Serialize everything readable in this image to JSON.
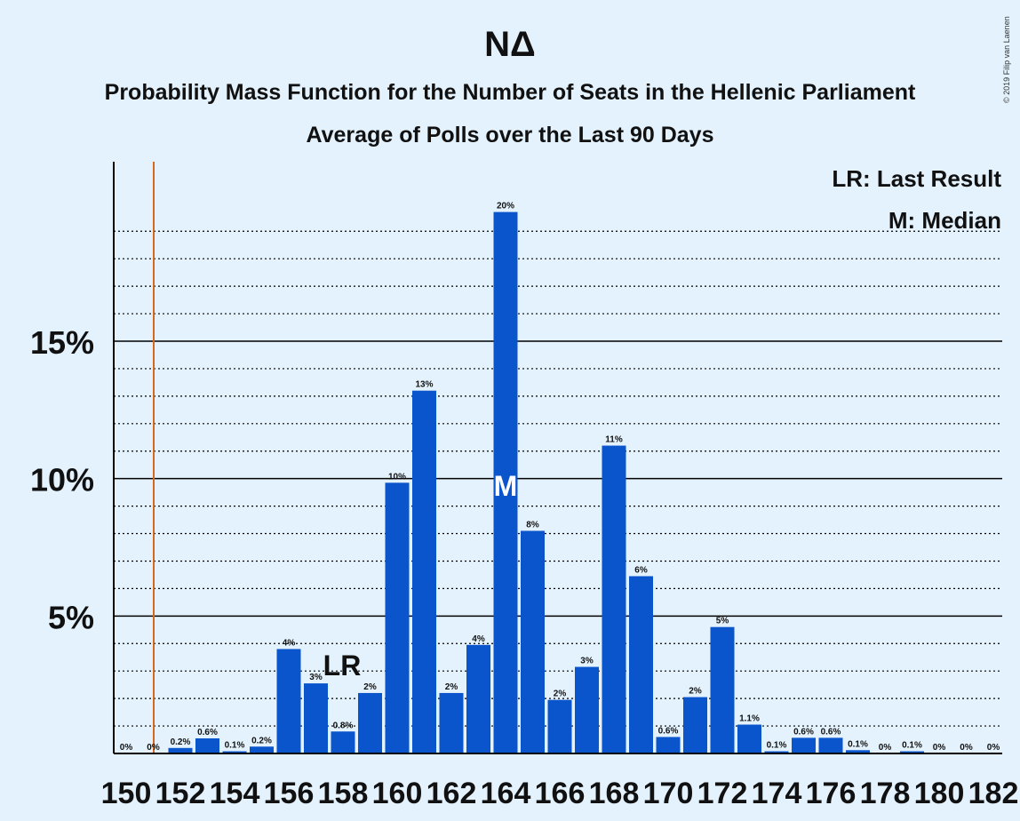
{
  "title": "ΝΔ",
  "subtitle": "Probability Mass Function for the Number of Seats in the Hellenic Parliament",
  "subtitle2": "Average of Polls over the Last 90 Days",
  "copyright": "© 2019 Filip van Laenen",
  "colors": {
    "bar": "#0a55cc",
    "background": "#e3f2fd",
    "last_result_line": "#d2691e",
    "text": "#111111"
  },
  "chart_data": {
    "type": "bar",
    "x": [
      150,
      151,
      152,
      153,
      154,
      155,
      156,
      157,
      158,
      159,
      160,
      161,
      162,
      163,
      164,
      165,
      166,
      167,
      168,
      169,
      170,
      171,
      172,
      173,
      174,
      175,
      176,
      177,
      178,
      179,
      180,
      181,
      182
    ],
    "values": [
      0,
      0,
      0.2,
      0.55,
      0.08,
      0.25,
      3.8,
      2.55,
      0.8,
      2.2,
      9.85,
      13.2,
      2.2,
      3.95,
      19.7,
      8.1,
      1.95,
      3.15,
      11.2,
      6.45,
      0.6,
      2.05,
      4.6,
      1.05,
      0.08,
      0.57,
      0.57,
      0.12,
      0,
      0.08,
      0,
      0,
      0
    ],
    "labels": [
      "0%",
      "0%",
      "0.2%",
      "0.6%",
      "0.1%",
      "0.2%",
      "4%",
      "3%",
      "0.8%",
      "2%",
      "10%",
      "13%",
      "2%",
      "4%",
      "20%",
      "8%",
      "2%",
      "3%",
      "11%",
      "6%",
      "0.6%",
      "2%",
      "5%",
      "1.1%",
      "0.1%",
      "0.6%",
      "0.6%",
      "0.1%",
      "0%",
      "0.1%",
      "0%",
      "0%",
      "0%"
    ],
    "xtick_labels": [
      "150",
      "152",
      "154",
      "156",
      "158",
      "160",
      "162",
      "164",
      "166",
      "168",
      "170",
      "172",
      "174",
      "176",
      "178",
      "180",
      "182"
    ],
    "ytick_labels": [
      "5%",
      "10%",
      "15%"
    ],
    "yticks": [
      5,
      10,
      15
    ],
    "ylim": [
      0,
      21.5
    ],
    "last_result": 151,
    "last_result_label": "LR",
    "median": 164,
    "median_label": "M",
    "legend": [
      "LR: Last Result",
      "M: Median"
    ]
  }
}
